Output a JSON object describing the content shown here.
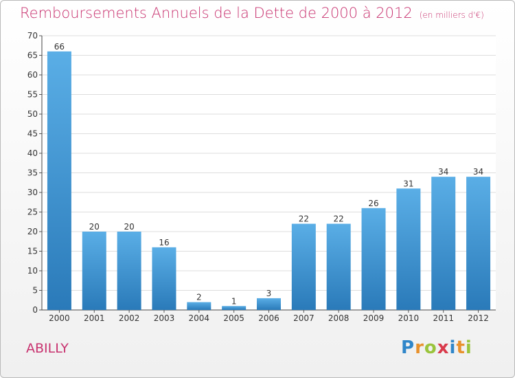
{
  "header": {
    "title": "Remboursements Annuels de la Dette de 2000 à 2012",
    "unit": "(en milliers d'€)"
  },
  "commune": "ABILLY",
  "logo": {
    "text": "Proxiti",
    "letters": [
      {
        "ch": "P",
        "color": "#2f86c9"
      },
      {
        "ch": "r",
        "color": "#e8912c"
      },
      {
        "ch": "o",
        "color": "#9ac43c"
      },
      {
        "ch": "x",
        "color": "#d93a4b"
      },
      {
        "ch": "i",
        "color": "#2f86c9"
      },
      {
        "ch": "t",
        "color": "#e8912c"
      },
      {
        "ch": "i",
        "color": "#9ac43c"
      }
    ]
  },
  "colors": {
    "bar_top": "#5aaee6",
    "bar_bottom": "#2a7ab9",
    "title": "#c8326f",
    "grid": "#dddddd"
  },
  "chart_data": {
    "type": "bar",
    "categories": [
      "2000",
      "2001",
      "2002",
      "2003",
      "2004",
      "2005",
      "2006",
      "2007",
      "2008",
      "2009",
      "2010",
      "2011",
      "2012"
    ],
    "values": [
      66,
      20,
      20,
      16,
      2,
      1,
      3,
      22,
      22,
      26,
      31,
      34,
      34
    ],
    "ylim": [
      0,
      70
    ],
    "yticks": [
      0,
      5,
      10,
      15,
      20,
      25,
      30,
      35,
      40,
      45,
      50,
      55,
      60,
      65,
      70
    ],
    "grid": true
  }
}
